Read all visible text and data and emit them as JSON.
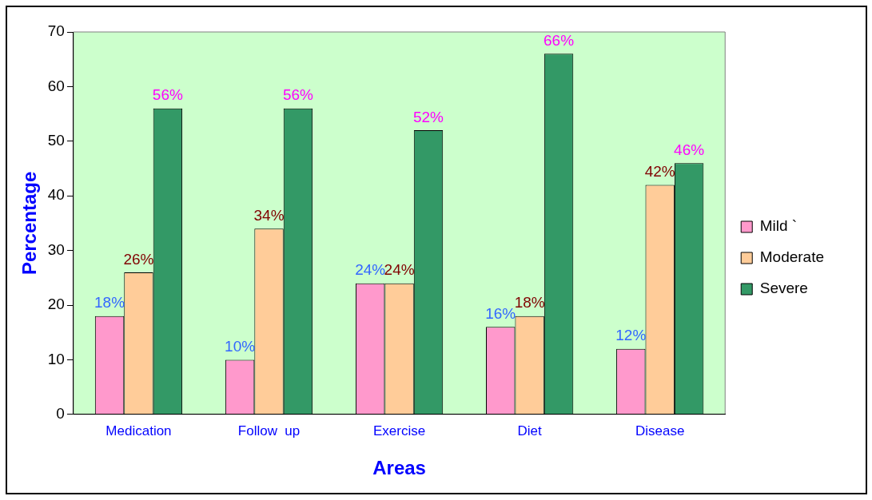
{
  "chart_data": {
    "type": "bar",
    "xlabel": "Areas",
    "ylabel": "Percentage",
    "categories": [
      "Medication",
      "Follow  up",
      "Exercise",
      "Diet",
      "Disease"
    ],
    "series": [
      {
        "name": "Mild `",
        "color": "#ff99cc",
        "values": [
          18,
          10,
          24,
          16,
          12
        ],
        "value_labels": [
          "18%",
          "10%",
          "24%",
          "16%",
          "12%"
        ]
      },
      {
        "name": "Moderate",
        "color": "#ffcc99",
        "values": [
          26,
          34,
          24,
          18,
          42
        ],
        "value_labels": [
          "26%",
          "34%",
          "24%",
          "18%",
          "42%"
        ]
      },
      {
        "name": "Severe",
        "color": "#339966",
        "values": [
          56,
          56,
          52,
          66,
          46
        ],
        "value_labels": [
          "56%",
          "56%",
          "52%",
          "66%",
          "46%"
        ]
      }
    ],
    "ylim": [
      0,
      70
    ],
    "yticks": [
      0,
      10,
      20,
      30,
      40,
      50,
      60,
      70
    ],
    "grid": false,
    "legend": "right"
  }
}
